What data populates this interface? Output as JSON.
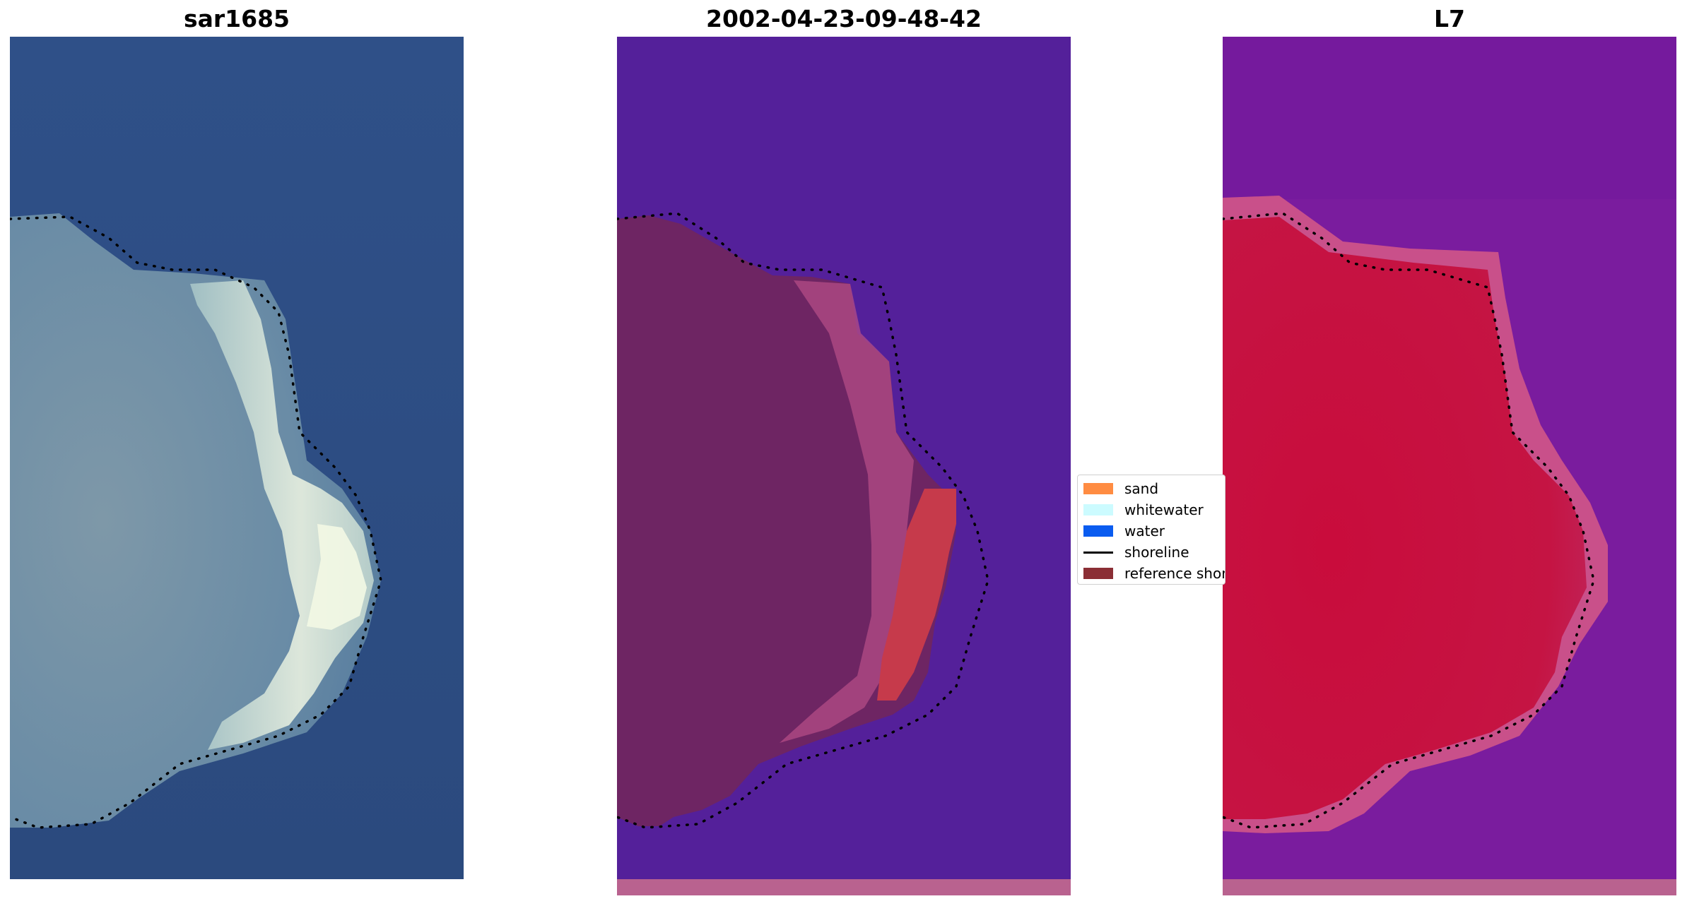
{
  "panels": [
    {
      "title": "sar1685",
      "type": "rgb"
    },
    {
      "title": "2002-04-23-09-48-42",
      "type": "classification"
    },
    {
      "title": "L7",
      "type": "index"
    }
  ],
  "legend": {
    "items": [
      {
        "label": "sand",
        "color": "#ff8c42",
        "kind": "patch"
      },
      {
        "label": "whitewater",
        "color": "#ccfbff",
        "kind": "patch"
      },
      {
        "label": "water",
        "color": "#0a5cf0",
        "kind": "patch"
      },
      {
        "label": "shoreline",
        "color": "#000000",
        "kind": "line"
      },
      {
        "label": "reference shoreline",
        "color": "#8b2e35",
        "kind": "patch"
      }
    ]
  },
  "colors": {
    "ocean_rgb": "#2f4f86",
    "island_rgb": "#6f93a8",
    "surf_rgb": "#e8f2e0",
    "class_water": "#54209a",
    "class_land": "#6e2563",
    "class_edge": "#b44c85",
    "class_sand_strip": "#c63a4b",
    "class_bottom_band": "#b9628f",
    "index_water": "#7a1c9e",
    "index_land": "#c4123f",
    "index_edge": "#c9508a",
    "shoreline_dots": "#000000"
  }
}
